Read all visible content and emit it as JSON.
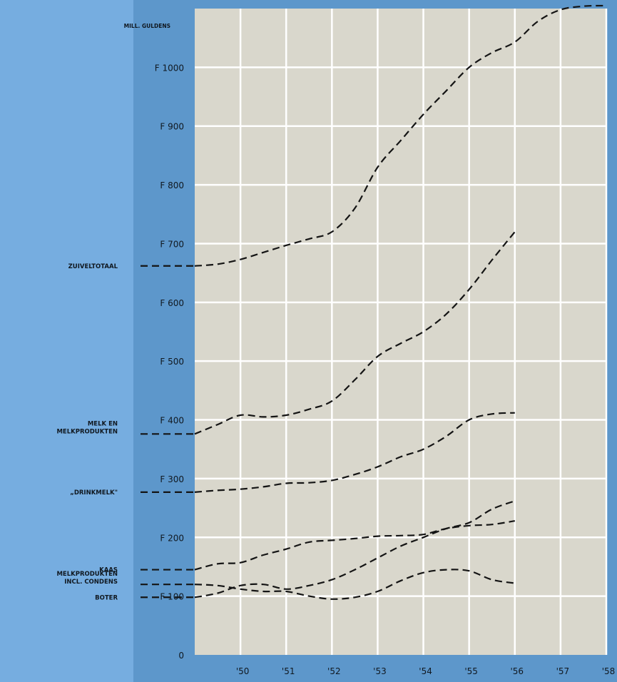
{
  "colors": {
    "outer_background": "#76ade0",
    "axis_band": "#5d97cb",
    "plot_background": "#d9d7cc",
    "grid": "#ffffff",
    "series_line": "#141414",
    "text": "#101820"
  },
  "chart_data": {
    "type": "line",
    "line_style": "dashed",
    "ylabel": "MILL. GULDENS",
    "y_unit": "F (mill. guldens)",
    "ylim": [
      0,
      1100
    ],
    "y_ticks": [
      {
        "value": 0,
        "label": "0"
      },
      {
        "value": 100,
        "label": "F 100"
      },
      {
        "value": 200,
        "label": "F 200"
      },
      {
        "value": 300,
        "label": "F 300"
      },
      {
        "value": 400,
        "label": "F 400"
      },
      {
        "value": 500,
        "label": "F 500"
      },
      {
        "value": 600,
        "label": "F 600"
      },
      {
        "value": 700,
        "label": "F 700"
      },
      {
        "value": 800,
        "label": "F 800"
      },
      {
        "value": 900,
        "label": "F 900"
      },
      {
        "value": 1000,
        "label": "F 1000"
      }
    ],
    "xlim": [
      1949,
      1958
    ],
    "x_ticks": [
      {
        "value": 1950,
        "label": "'50"
      },
      {
        "value": 1951,
        "label": "'51"
      },
      {
        "value": 1952,
        "label": "'52"
      },
      {
        "value": 1953,
        "label": "'53"
      },
      {
        "value": 1954,
        "label": "'54"
      },
      {
        "value": 1955,
        "label": "'55"
      },
      {
        "value": 1956,
        "label": "'56"
      },
      {
        "value": 1957,
        "label": "'57"
      },
      {
        "value": 1958,
        "label": "'58"
      }
    ],
    "grid": true,
    "series": [
      {
        "name": "ZUIVELTOTAAL",
        "name_lines": [
          "ZUIVELTOTAAL"
        ],
        "label_value": 662,
        "points": [
          [
            1949,
            662
          ],
          [
            1949.5,
            665
          ],
          [
            1950,
            673
          ],
          [
            1950.5,
            685
          ],
          [
            1951,
            697
          ],
          [
            1951.5,
            708
          ],
          [
            1952,
            720
          ],
          [
            1952.5,
            760
          ],
          [
            1953,
            830
          ],
          [
            1953.5,
            875
          ],
          [
            1954,
            920
          ],
          [
            1954.5,
            960
          ],
          [
            1955,
            1000
          ],
          [
            1955.5,
            1025
          ],
          [
            1956,
            1043
          ],
          [
            1956.5,
            1078
          ],
          [
            1957,
            1098
          ],
          [
            1957.5,
            1104
          ],
          [
            1958,
            1105
          ]
        ]
      },
      {
        "name": "MELK EN MELKPRODUKTEN",
        "name_lines": [
          "MELK EN",
          "MELKPRODUKTEN"
        ],
        "label_value": 376,
        "points": [
          [
            1949,
            376
          ],
          [
            1949.5,
            392
          ],
          [
            1950,
            408
          ],
          [
            1950.5,
            405
          ],
          [
            1951,
            408
          ],
          [
            1951.5,
            418
          ],
          [
            1952,
            432
          ],
          [
            1952.5,
            468
          ],
          [
            1953,
            508
          ],
          [
            1953.5,
            530
          ],
          [
            1954,
            550
          ],
          [
            1954.5,
            580
          ],
          [
            1955,
            622
          ],
          [
            1955.5,
            672
          ],
          [
            1956,
            720
          ]
        ]
      },
      {
        "name": "„DRINKMELK\"",
        "name_lines": [
          "„DRINKMELK\""
        ],
        "label_value": 277,
        "points": [
          [
            1949,
            277
          ],
          [
            1949.5,
            280
          ],
          [
            1950,
            282
          ],
          [
            1950.5,
            286
          ],
          [
            1951,
            292
          ],
          [
            1951.5,
            293
          ],
          [
            1952,
            297
          ],
          [
            1952.5,
            307
          ],
          [
            1953,
            320
          ],
          [
            1953.5,
            337
          ],
          [
            1954,
            350
          ],
          [
            1954.5,
            372
          ],
          [
            1955,
            400
          ],
          [
            1955.5,
            410
          ],
          [
            1956,
            412
          ]
        ]
      },
      {
        "name": "KAAS",
        "name_lines": [
          "KAAS"
        ],
        "label_value": 145,
        "points": [
          [
            1949,
            145
          ],
          [
            1949.5,
            155
          ],
          [
            1950,
            157
          ],
          [
            1950.5,
            170
          ],
          [
            1951,
            180
          ],
          [
            1951.5,
            192
          ],
          [
            1952,
            195
          ],
          [
            1952.5,
            198
          ],
          [
            1953,
            202
          ],
          [
            1953.5,
            203
          ],
          [
            1954,
            205
          ],
          [
            1954.5,
            215
          ],
          [
            1955,
            220
          ],
          [
            1955.5,
            222
          ],
          [
            1956,
            228
          ]
        ]
      },
      {
        "name": "MELKPRODUKTEN INCL. CONDENS",
        "name_lines": [
          "MELKPRODUKTEN",
          "INCL. CONDENS"
        ],
        "label_value": 120,
        "points": [
          [
            1949,
            120
          ],
          [
            1949.5,
            118
          ],
          [
            1950,
            112
          ],
          [
            1950.5,
            108
          ],
          [
            1951,
            108
          ],
          [
            1951.5,
            100
          ],
          [
            1952,
            95
          ],
          [
            1952.5,
            98
          ],
          [
            1953,
            108
          ],
          [
            1953.5,
            126
          ],
          [
            1954,
            140
          ],
          [
            1954.5,
            145
          ],
          [
            1955,
            143
          ],
          [
            1955.5,
            128
          ],
          [
            1956,
            122
          ]
        ]
      },
      {
        "name": "BOTER",
        "name_lines": [
          "BOTER"
        ],
        "label_value": 98,
        "points": [
          [
            1949,
            98
          ],
          [
            1949.5,
            105
          ],
          [
            1950,
            118
          ],
          [
            1950.5,
            120
          ],
          [
            1951,
            112
          ],
          [
            1951.5,
            118
          ],
          [
            1952,
            128
          ],
          [
            1952.5,
            145
          ],
          [
            1953,
            165
          ],
          [
            1953.5,
            185
          ],
          [
            1954,
            200
          ],
          [
            1954.5,
            215
          ],
          [
            1955,
            225
          ],
          [
            1955.5,
            248
          ],
          [
            1956,
            262
          ]
        ]
      }
    ]
  }
}
